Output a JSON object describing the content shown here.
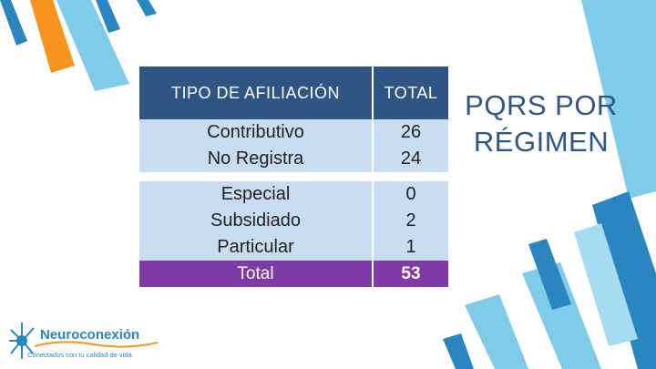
{
  "table": {
    "headers": [
      "TIPO DE AFILIACIÓN",
      "TOTAL"
    ],
    "rows": [
      {
        "label": "Contributivo",
        "value": "26"
      },
      {
        "label": "No Registra",
        "value": "24"
      },
      {
        "label": "Especial",
        "value": "0"
      },
      {
        "label": "Subsidiado",
        "value": "2"
      },
      {
        "label": "Particular",
        "value": "1"
      }
    ],
    "total": {
      "label": "Total",
      "value": "53"
    }
  },
  "title": {
    "line1": "PQRS POR",
    "line2": "RÉGIMEN"
  },
  "logo": {
    "name": "Neuroconexión",
    "tagline": "Conectados con tu calidad de vida"
  },
  "colors": {
    "header": "#2f5486",
    "row": "#c9dcf0",
    "total": "#7f3aa6",
    "title": "#2f5486",
    "stripe_dark": "#2a86c0",
    "stripe_light": "#7fcbea",
    "stripe_orange": "#f7941d"
  }
}
